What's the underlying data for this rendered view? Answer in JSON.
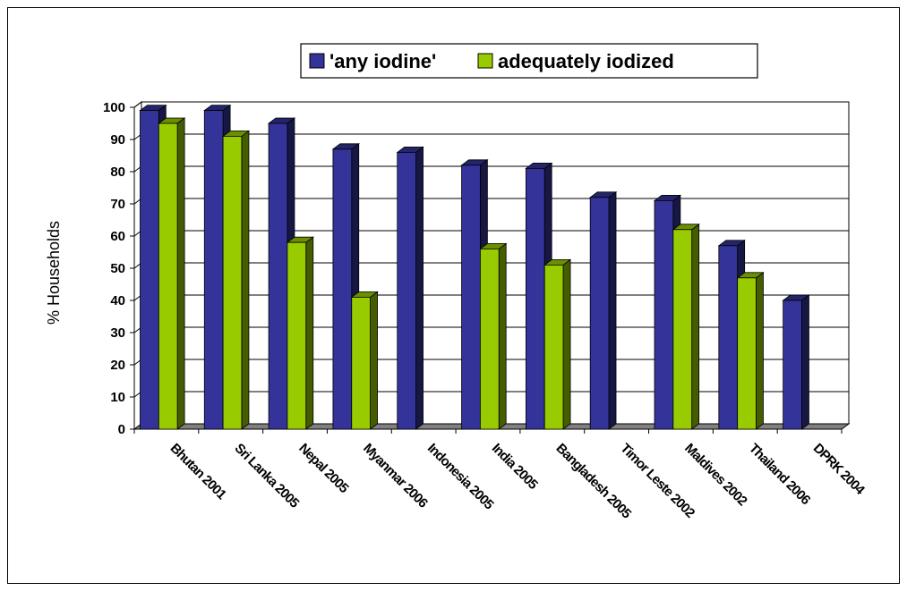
{
  "chart_data": {
    "type": "bar",
    "categories": [
      "Bhutan 2001",
      "Sri Lanka 2005",
      "Nepal 2005",
      "Myanmar 2006",
      "Indonesia 2005",
      "India 2005",
      "Bangladesh 2005",
      "Timor Leste 2002",
      "Maldives 2002",
      "Thailand 2006",
      "DPRK 2004"
    ],
    "series": [
      {
        "name": "'any iodine'",
        "values": [
          99,
          99,
          95,
          87,
          86,
          82,
          81,
          72,
          71,
          57,
          40
        ],
        "color": "#333399"
      },
      {
        "name": "adequately iodized",
        "values": [
          95,
          91,
          58,
          41,
          null,
          56,
          51,
          null,
          62,
          47,
          null
        ],
        "color": "#99cc00"
      }
    ],
    "title": "",
    "xlabel": "",
    "ylabel": "% Households",
    "ylim": [
      0,
      100
    ],
    "yticks": [
      "0",
      "10",
      "20",
      "30",
      "40",
      "50",
      "60",
      "70",
      "80",
      "90",
      "100"
    ],
    "grid": true,
    "legend": "top-center",
    "three_d": true
  }
}
